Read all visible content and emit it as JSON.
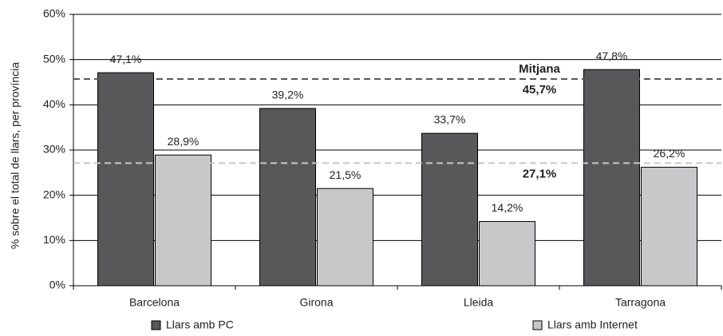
{
  "chart_data": {
    "type": "bar",
    "y_label": "% sobre el total de llars, per província",
    "categories": [
      "Barcelona",
      "Girona",
      "Lleida",
      "Tarragona"
    ],
    "series": [
      {
        "name": "Llars amb PC",
        "color": "#58585a",
        "values": [
          47.1,
          39.2,
          33.7,
          47.8
        ],
        "value_labels": [
          "47,1%",
          "39,2%",
          "33,7%",
          "47,8%"
        ]
      },
      {
        "name": "Llars amb Internet",
        "color": "#c8c8ca",
        "values": [
          28.9,
          21.5,
          14.2,
          26.2
        ],
        "value_labels": [
          "28,9%",
          "21,5%",
          "14,2%",
          "26,2%"
        ]
      }
    ],
    "average_label": "Mitjana",
    "reference_lines": [
      {
        "value": 45.7,
        "label": "45,7%",
        "color": "#58585a"
      },
      {
        "value": 27.1,
        "label": "27,1%",
        "color": "#c8c8ca"
      }
    ],
    "ylim": [
      0,
      60
    ],
    "yticks": [
      {
        "value": 0,
        "label": "0%"
      },
      {
        "value": 10,
        "label": "10%"
      },
      {
        "value": 20,
        "label": "20%"
      },
      {
        "value": 30,
        "label": "30%"
      },
      {
        "value": 40,
        "label": "40%"
      },
      {
        "value": 50,
        "label": "50%"
      },
      {
        "value": 60,
        "label": "60%"
      }
    ],
    "grid": true,
    "legend": "bottom"
  }
}
